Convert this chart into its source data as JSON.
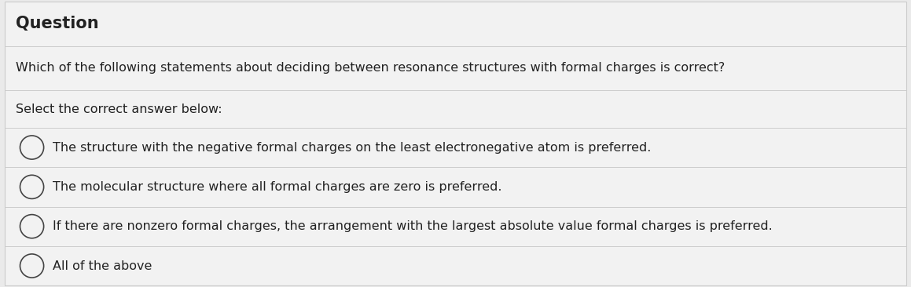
{
  "title": "Question",
  "question": "Which of the following statements about deciding between resonance structures with formal charges is correct?",
  "prompt": "Select the correct answer below:",
  "options": [
    "The structure with the negative formal charges on the least electronegative atom is preferred.",
    "The molecular structure where all formal charges are zero is preferred.",
    "If there are nonzero formal charges, the arrangement with the largest absolute value formal charges is preferred.",
    "All of the above"
  ],
  "bg_color": "#eaeaea",
  "panel_color": "#f2f2f2",
  "text_color": "#222222",
  "line_color": "#cccccc",
  "circle_color": "#444444",
  "title_fontsize": 15,
  "question_fontsize": 11.5,
  "prompt_fontsize": 11.5,
  "option_fontsize": 11.5,
  "figwidth": 11.59,
  "figheight": 3.66
}
